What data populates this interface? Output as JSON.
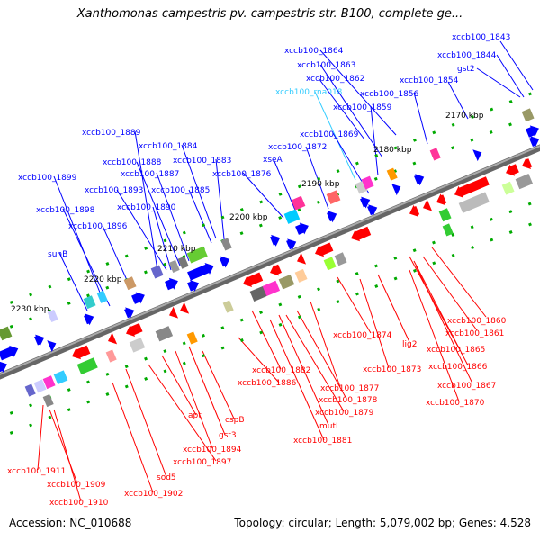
{
  "title": "Xanthomonas campestris pv. campestris str. B100, complete ge...",
  "accession": "Accession: NC_010688",
  "info": "Topology: circular; Length: 5,079,002 bp; Genes: 4,528",
  "kbp_ticks": [
    "2170 kbp",
    "2180 kbp",
    "2190 kbp",
    "2200 kbp",
    "2210 kbp",
    "2220 kbp",
    "2230 kbp"
  ],
  "top_labels": [
    "xccb100_1843",
    "xccb100_1844",
    "gst2",
    "xccb100_1864",
    "xccb100_1863",
    "xccb100_1862",
    "xccb100_1854",
    "xccb100_rna018",
    "xccb100_1856",
    "xccb100_1859",
    "xccb100_1889",
    "xccb100_1884",
    "xccb100_1869",
    "xccb100_1872",
    "xccb100_1888",
    "xccb100_1883",
    "xseA",
    "xccb100_1887",
    "xccb100_1876",
    "xccb100_1899",
    "xccb100_1893",
    "xccb100_1885",
    "xccb100_1898",
    "xccb100_1890",
    "xccb100_1896",
    "suhB"
  ],
  "bottom_labels": [
    "xccb100_1860",
    "xccb100_1861",
    "xccb100_1874",
    "lig2",
    "xccb100_1865",
    "xccb100_1873",
    "xccb100_1866",
    "xccb100_1867",
    "xccb100_1882",
    "xccb100_1886",
    "xccb100_1877",
    "xccb100_1878",
    "xccb100_1870",
    "xccb100_1879",
    "mutL",
    "xccb100_1881",
    "cspB",
    "apt",
    "gst3",
    "xccb100_1894",
    "xccb100_1897",
    "sod5",
    "xccb100_1911",
    "xccb100_1909",
    "xccb100_1902",
    "xccb100_1910"
  ],
  "colors": {
    "forward": "#0000ff",
    "reverse": "#ff0000",
    "rna": "#33ccff",
    "backbone": "#808080"
  }
}
